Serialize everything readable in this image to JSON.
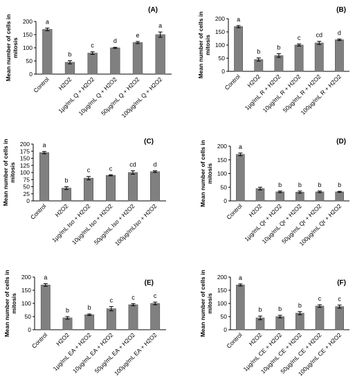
{
  "chart_data": [
    {
      "type": "bar",
      "panel": "(A)",
      "ylabel": "Mean number of cells in mitosis",
      "ylim": [
        0,
        200
      ],
      "yticks": [
        0,
        50,
        100,
        150,
        200
      ],
      "categories": [
        "Control",
        "H2O2",
        "1µg/mL Q + H2O2",
        "10µg/mL Q + H2O2",
        "50µg/mL Q + H2O2",
        "100µg/mL Q + H2O2"
      ],
      "values": [
        170,
        45,
        80,
        100,
        120,
        150
      ],
      "errors": [
        5,
        6,
        5,
        2,
        4,
        10
      ],
      "sig": [
        "a",
        "b",
        "c",
        "d",
        "e",
        "a"
      ]
    },
    {
      "type": "bar",
      "panel": "(B)",
      "ylabel": "Mean number of cells in mitosis",
      "ylim": [
        0,
        200
      ],
      "yticks": [
        0,
        50,
        100,
        150,
        200
      ],
      "categories": [
        "Control",
        "H2O2",
        "1µg/mL R + H2O2",
        "10µg/mL R + H2O2",
        "50µg/mL R + H2O2",
        "100µg/mL R + H2O2"
      ],
      "values": [
        170,
        45,
        60,
        100,
        108,
        120
      ],
      "errors": [
        4,
        6,
        7,
        4,
        6,
        3
      ],
      "sig": [
        "a",
        "b",
        "b",
        "c",
        "cd",
        "d"
      ]
    },
    {
      "type": "bar",
      "panel": "(C)",
      "ylabel": "Mean number of cells in mitosis",
      "ylim": [
        0,
        200
      ],
      "yticks": [
        0,
        25,
        50,
        75,
        100,
        125,
        150,
        175,
        200
      ],
      "categories": [
        "Control",
        "H2O2",
        "1µg/mL Iso + H2O2",
        "10µg/mL Iso + H2O2",
        "50µg/mL Iso + H2O2",
        "100µg/mLIso + H2O2"
      ],
      "values": [
        170,
        45,
        80,
        90,
        100,
        103
      ],
      "errors": [
        4,
        5,
        6,
        2,
        6,
        3
      ],
      "sig": [
        "a",
        "b",
        "c",
        "c",
        "cd",
        "d"
      ]
    },
    {
      "type": "bar",
      "panel": "(D)",
      "ylabel": "Mean number of cells in mitosis",
      "ylim": [
        0,
        200
      ],
      "yticks": [
        0,
        50,
        100,
        150,
        200
      ],
      "categories": [
        "Control",
        "H2O2",
        "1µg/mL Qr + H2O2",
        "10µg/mL Qr + H2O2",
        "50µg/mL Qr + H2O2",
        "100µg/mL Qr + H2O2"
      ],
      "values": [
        170,
        45,
        33,
        32,
        33,
        33
      ],
      "errors": [
        5,
        5,
        3,
        4,
        3,
        2
      ],
      "sig": [
        "a",
        "",
        "b",
        "b",
        "b",
        "b"
      ]
    },
    {
      "type": "bar",
      "panel": "(E)",
      "ylabel": "Mean number of cells in mitosis",
      "ylim": [
        0,
        200
      ],
      "yticks": [
        0,
        50,
        100,
        150,
        200
      ],
      "categories": [
        "Control",
        "H2O2",
        "1µg/mL EA + H2O2",
        "10µg/mL EA + H2O2",
        "50µg/mL EA + H2O2",
        "100µg/mL EA + H2O2"
      ],
      "values": [
        170,
        45,
        57,
        80,
        95,
        100
      ],
      "errors": [
        5,
        5,
        3,
        8,
        4,
        5
      ],
      "sig": [
        "a",
        "b",
        "b",
        "c",
        "c",
        "c"
      ]
    },
    {
      "type": "bar",
      "panel": "(F)",
      "ylabel": "Mean number of cells in mitosis",
      "ylim": [
        0,
        200
      ],
      "yticks": [
        0,
        50,
        100,
        150,
        200
      ],
      "categories": [
        "Control",
        "H2O2",
        "1µg/mL CE + H2O2",
        "10µg/mL CE + H2O2",
        "50µg/mL CE + H2O2",
        "100µg/mL CE + H2O2"
      ],
      "values": [
        170,
        45,
        50,
        63,
        90,
        88
      ],
      "errors": [
        4,
        7,
        5,
        6,
        5,
        6
      ],
      "sig": [
        "a",
        "b",
        "b",
        "b",
        "c",
        "c"
      ]
    }
  ],
  "colors": {
    "bar": "#808080",
    "axis": "#000000",
    "error": "#000000"
  }
}
